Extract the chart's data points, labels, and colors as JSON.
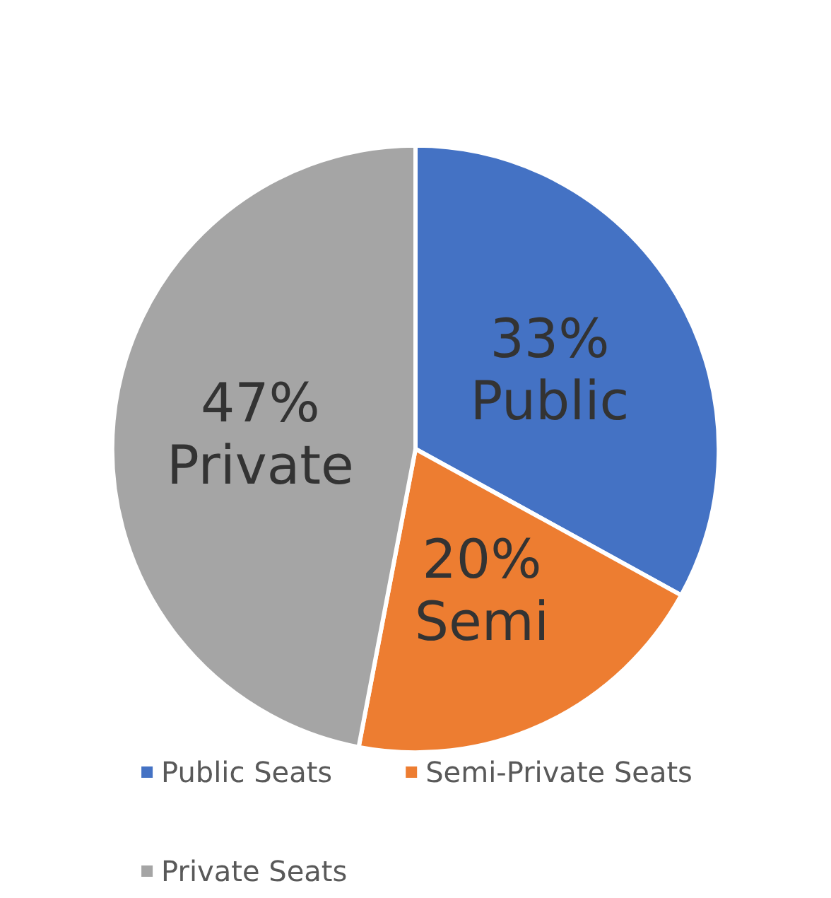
{
  "chart_data": {
    "type": "pie",
    "categories": [
      "Public Seats",
      "Semi-Private Seats",
      "Private Seats"
    ],
    "values": [
      33,
      20,
      47
    ],
    "colors": [
      "#4472c4",
      "#ed7d31",
      "#a5a5a5"
    ],
    "value_labels": [
      "33%\nPublic",
      "20%\nSemi",
      "47%\nPrivate"
    ],
    "legend": "bottom"
  }
}
